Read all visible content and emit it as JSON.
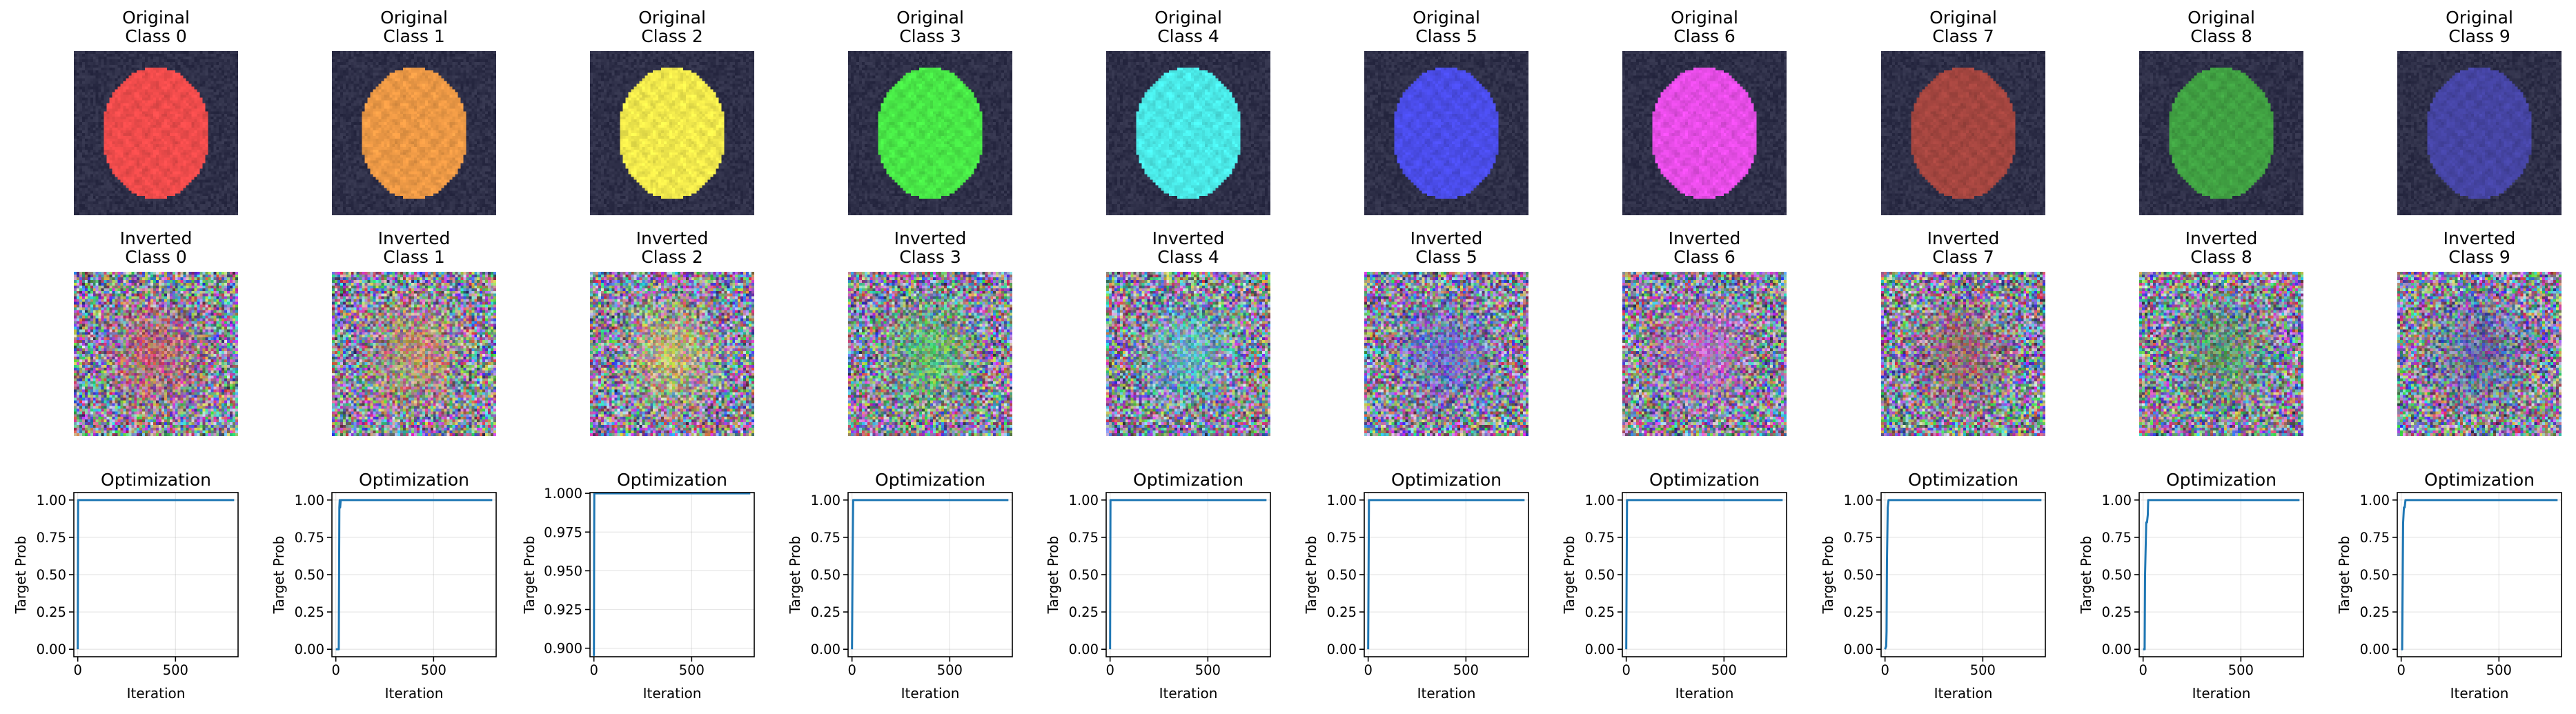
{
  "figure": {
    "row1_title_prefix": "Original",
    "row2_title_prefix": "Inverted",
    "row3_title": "Optimization",
    "class_label_prefix": "Class",
    "background_color": "#2e2f48"
  },
  "chart_data": {
    "type": "image-grid-with-line-plots",
    "columns": [
      {
        "class_label": "Class 0",
        "color": "#ee4b4b"
      },
      {
        "class_label": "Class 1",
        "color": "#eb9845"
      },
      {
        "class_label": "Class 2",
        "color": "#f0e84c"
      },
      {
        "class_label": "Class 3",
        "color": "#48e646"
      },
      {
        "class_label": "Class 4",
        "color": "#4ae8e6"
      },
      {
        "class_label": "Class 5",
        "color": "#4a4ce8"
      },
      {
        "class_label": "Class 6",
        "color": "#e64ce6"
      },
      {
        "class_label": "Class 7",
        "color": "#a3453f"
      },
      {
        "class_label": "Class 8",
        "color": "#40a042"
      },
      {
        "class_label": "Class 9",
        "color": "#4544a3"
      }
    ],
    "plots": [
      {
        "title": "Optimization",
        "xlabel": "Iteration",
        "ylabel": "Target Prob",
        "xlim": [
          -20,
          820
        ],
        "ylim": [
          -0.05,
          1.05
        ],
        "xticks": [
          0,
          500
        ],
        "xtick_labels": [
          "0",
          "500"
        ],
        "yticks": [
          0.0,
          0.25,
          0.5,
          0.75,
          1.0
        ],
        "ytick_labels": [
          "0.00",
          "0.25",
          "0.50",
          "0.75",
          "1.00"
        ],
        "series": [
          {
            "x": [
              0,
              1,
              2,
              800
            ],
            "y": [
              0.0,
              0.5,
              1.0,
              1.0
            ]
          }
        ]
      },
      {
        "title": "Optimization",
        "xlabel": "Iteration",
        "ylabel": "Target Prob",
        "xlim": [
          -20,
          820
        ],
        "ylim": [
          -0.05,
          1.05
        ],
        "xticks": [
          0,
          500
        ],
        "xtick_labels": [
          "0",
          "500"
        ],
        "yticks": [
          0.0,
          0.25,
          0.5,
          0.75,
          1.0
        ],
        "ytick_labels": [
          "0.00",
          "0.25",
          "0.50",
          "0.75",
          "1.00"
        ],
        "series": [
          {
            "x": [
              0,
              5,
              10,
              15,
              18,
              20,
              22,
              25,
              30,
              800
            ],
            "y": [
              0.0,
              0.0,
              0.0,
              0.0,
              0.95,
              1.0,
              0.95,
              1.0,
              1.0,
              1.0
            ]
          }
        ]
      },
      {
        "title": "Optimization",
        "xlabel": "Iteration",
        "ylabel": "Target Prob",
        "xlim": [
          -20,
          820
        ],
        "ylim": [
          0.8945,
          1.0005
        ],
        "xticks": [
          0,
          500
        ],
        "xtick_labels": [
          "0",
          "500"
        ],
        "yticks": [
          0.9,
          0.925,
          0.95,
          0.975,
          1.0
        ],
        "ytick_labels": [
          "0.900",
          "0.925",
          "0.950",
          "0.975",
          "1.000"
        ],
        "series": [
          {
            "x": [
              0,
              1,
              2,
              800
            ],
            "y": [
              0.895,
              0.96,
              1.0,
              1.0
            ]
          }
        ]
      },
      {
        "title": "Optimization",
        "xlabel": "Iteration",
        "ylabel": "Target Prob",
        "xlim": [
          -20,
          820
        ],
        "ylim": [
          -0.05,
          1.05
        ],
        "xticks": [
          0,
          500
        ],
        "xtick_labels": [
          "0",
          "500"
        ],
        "yticks": [
          0.0,
          0.25,
          0.5,
          0.75,
          1.0
        ],
        "ytick_labels": [
          "0.00",
          "0.25",
          "0.50",
          "0.75",
          "1.00"
        ],
        "series": [
          {
            "x": [
              0,
              3,
              6,
              800
            ],
            "y": [
              0.0,
              0.6,
              1.0,
              1.0
            ]
          }
        ]
      },
      {
        "title": "Optimization",
        "xlabel": "Iteration",
        "ylabel": "Target Prob",
        "xlim": [
          -20,
          820
        ],
        "ylim": [
          -0.05,
          1.05
        ],
        "xticks": [
          0,
          500
        ],
        "xtick_labels": [
          "0",
          "500"
        ],
        "yticks": [
          0.0,
          0.25,
          0.5,
          0.75,
          1.0
        ],
        "ytick_labels": [
          "0.00",
          "0.25",
          "0.50",
          "0.75",
          "1.00"
        ],
        "series": [
          {
            "x": [
              0,
              1,
              2,
              800
            ],
            "y": [
              0.0,
              0.5,
              1.0,
              1.0
            ]
          }
        ]
      },
      {
        "title": "Optimization",
        "xlabel": "Iteration",
        "ylabel": "Target Prob",
        "xlim": [
          -20,
          820
        ],
        "ylim": [
          -0.05,
          1.05
        ],
        "xticks": [
          0,
          500
        ],
        "xtick_labels": [
          "0",
          "500"
        ],
        "yticks": [
          0.0,
          0.25,
          0.5,
          0.75,
          1.0
        ],
        "ytick_labels": [
          "0.00",
          "0.25",
          "0.50",
          "0.75",
          "1.00"
        ],
        "series": [
          {
            "x": [
              0,
              2,
              4,
              800
            ],
            "y": [
              0.0,
              0.5,
              1.0,
              1.0
            ]
          }
        ]
      },
      {
        "title": "Optimization",
        "xlabel": "Iteration",
        "ylabel": "Target Prob",
        "xlim": [
          -20,
          820
        ],
        "ylim": [
          -0.05,
          1.05
        ],
        "xticks": [
          0,
          500
        ],
        "xtick_labels": [
          "0",
          "500"
        ],
        "yticks": [
          0.0,
          0.25,
          0.5,
          0.75,
          1.0
        ],
        "ytick_labels": [
          "0.00",
          "0.25",
          "0.50",
          "0.75",
          "1.00"
        ],
        "series": [
          {
            "x": [
              0,
              2,
              4,
              800
            ],
            "y": [
              0.0,
              0.5,
              1.0,
              1.0
            ]
          }
        ]
      },
      {
        "title": "Optimization",
        "xlabel": "Iteration",
        "ylabel": "Target Prob",
        "xlim": [
          -20,
          820
        ],
        "ylim": [
          -0.05,
          1.05
        ],
        "xticks": [
          0,
          500
        ],
        "xtick_labels": [
          "0",
          "500"
        ],
        "yticks": [
          0.0,
          0.25,
          0.5,
          0.75,
          1.0
        ],
        "ytick_labels": [
          "0.00",
          "0.25",
          "0.50",
          "0.75",
          "1.00"
        ],
        "series": [
          {
            "x": [
              0,
              6,
              8,
              10,
              14,
              18,
              800
            ],
            "y": [
              0.0,
              0.02,
              0.12,
              0.6,
              0.95,
              1.0,
              1.0
            ]
          }
        ]
      },
      {
        "title": "Optimization",
        "xlabel": "Iteration",
        "ylabel": "Target Prob",
        "xlim": [
          -20,
          820
        ],
        "ylim": [
          -0.05,
          1.05
        ],
        "xticks": [
          0,
          500
        ],
        "xtick_labels": [
          "0",
          "500"
        ],
        "yticks": [
          0.0,
          0.25,
          0.5,
          0.75,
          1.0
        ],
        "ytick_labels": [
          "0.00",
          "0.25",
          "0.50",
          "0.75",
          "1.00"
        ],
        "series": [
          {
            "x": [
              0,
              8,
              10,
              16,
              20,
              24,
              26,
              30,
              800
            ],
            "y": [
              0.0,
              0.0,
              0.5,
              0.85,
              0.85,
              0.9,
              1.0,
              1.0,
              1.0
            ]
          }
        ]
      },
      {
        "title": "Optimization",
        "xlabel": "Iteration",
        "ylabel": "Target Prob",
        "xlim": [
          -20,
          820
        ],
        "ylim": [
          -0.05,
          1.05
        ],
        "xticks": [
          0,
          500
        ],
        "xtick_labels": [
          "0",
          "500"
        ],
        "yticks": [
          0.0,
          0.25,
          0.5,
          0.75,
          1.0
        ],
        "ytick_labels": [
          "0.00",
          "0.25",
          "0.50",
          "0.75",
          "1.00"
        ],
        "series": [
          {
            "x": [
              0,
              5,
              10,
              14,
              18,
              22,
              800
            ],
            "y": [
              0.0,
              0.0,
              0.85,
              0.95,
              0.95,
              1.0,
              1.0
            ]
          }
        ]
      }
    ]
  }
}
